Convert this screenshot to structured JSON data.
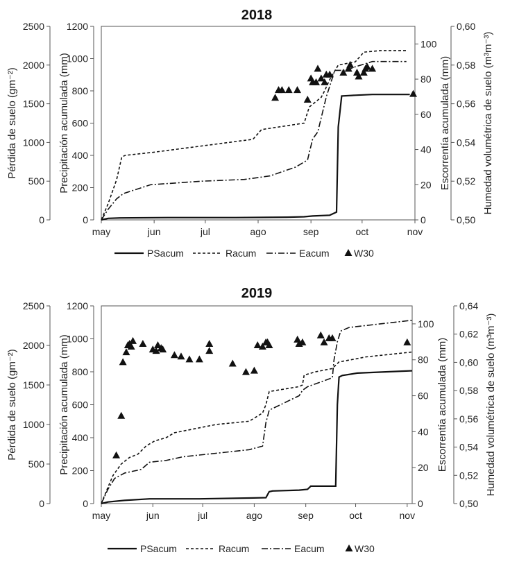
{
  "chart_data": [
    {
      "type": "line",
      "title": "2018",
      "axes": {
        "soil_loss": {
          "label": "Pérdida de suelo (gm⁻²)",
          "range": [
            0,
            2500
          ],
          "ticks": [
            "0",
            "500",
            "1000",
            "1500",
            "2000",
            "2500"
          ]
        },
        "precip": {
          "label": "Precipitación acumulada  (mm)",
          "range": [
            0,
            1200
          ],
          "ticks": [
            "0",
            "200",
            "400",
            "600",
            "800",
            "1000",
            "1200"
          ]
        },
        "runoff": {
          "label": "Escorrentía acumulada (mm)",
          "range": [
            0,
            110
          ],
          "ticks": [
            "0",
            "20",
            "40",
            "60",
            "80",
            "100"
          ]
        },
        "moisture": {
          "label": "Humedad volumétrica de suelo (m³m⁻³)",
          "range": [
            0.5,
            0.6
          ],
          "ticks": [
            "0,50",
            "0,52",
            "0,54",
            "0,56",
            "0,58",
            "0,60"
          ]
        }
      },
      "x_ticks": [
        {
          "label": "may",
          "day": 1
        },
        {
          "label": "jun",
          "day": 32
        },
        {
          "label": "jul",
          "day": 62
        },
        {
          "label": "ago",
          "day": 93
        },
        {
          "label": "sep",
          "day": 124
        },
        {
          "label": "oct",
          "day": 154
        },
        {
          "label": "nov",
          "day": 185
        }
      ],
      "x_range": [
        1,
        185
      ],
      "series": [
        {
          "name": "PSacum",
          "axis": "soil_loss",
          "style": "solid",
          "x": [
            1,
            5,
            12,
            40,
            80,
            110,
            120,
            125,
            135,
            139,
            140,
            142,
            150,
            160,
            170,
            182
          ],
          "y": [
            0,
            20,
            25,
            30,
            30,
            35,
            40,
            50,
            60,
            100,
            1200,
            1600,
            1610,
            1620,
            1620,
            1620
          ]
        },
        {
          "name": "Racum",
          "axis": "precip",
          "style": "dashed",
          "x": [
            1,
            5,
            10,
            13,
            15,
            32,
            90,
            95,
            120,
            123,
            130,
            132,
            135,
            140,
            150,
            155,
            165,
            180
          ],
          "y": [
            0,
            100,
            250,
            390,
            400,
            420,
            500,
            560,
            600,
            700,
            760,
            800,
            870,
            960,
            980,
            1040,
            1050,
            1050
          ]
        },
        {
          "name": "Eacum",
          "axis": "runoff",
          "style": "dashdot",
          "x": [
            1,
            5,
            10,
            14,
            30,
            60,
            85,
            100,
            115,
            122,
            125,
            128,
            133,
            138,
            145,
            150,
            160,
            180
          ],
          "y": [
            0,
            6,
            12,
            15,
            20,
            22,
            23,
            25,
            30,
            34,
            46,
            50,
            70,
            85,
            85,
            87,
            90,
            90
          ]
        },
        {
          "name": "W30",
          "axis": "moisture",
          "style": "triangle",
          "x": [
            103,
            105,
            107,
            111,
            116,
            122,
            124,
            125,
            127,
            128,
            130,
            132,
            133,
            135,
            143,
            146,
            147,
            151,
            152,
            155,
            156,
            157,
            160,
            184
          ],
          "y": [
            0.563,
            0.567,
            0.567,
            0.567,
            0.567,
            0.562,
            0.573,
            0.571,
            0.571,
            0.578,
            0.573,
            0.571,
            0.575,
            0.575,
            0.576,
            0.578,
            0.58,
            0.576,
            0.574,
            0.576,
            0.578,
            0.579,
            0.578,
            0.565
          ]
        }
      ],
      "legend": {
        "placement": "bottom",
        "entries": [
          "PSacum",
          "Racum",
          "Eacum",
          "W30"
        ]
      }
    },
    {
      "type": "line",
      "title": "2019",
      "axes": {
        "soil_loss": {
          "label": "Pérdida de suelo (gm⁻²)",
          "range": [
            0,
            2500
          ],
          "ticks": [
            "0",
            "500",
            "1000",
            "1500",
            "2000",
            "2500"
          ]
        },
        "precip": {
          "label": "Precipitación acumulada  (mm)",
          "range": [
            0,
            1200
          ],
          "ticks": [
            "0",
            "200",
            "400",
            "600",
            "800",
            "1000",
            "1200"
          ]
        },
        "runoff": {
          "label": "Escorrentía acumulada (mm)",
          "range": [
            0,
            110
          ],
          "ticks": [
            "0",
            "20",
            "40",
            "60",
            "80",
            "100"
          ]
        },
        "moisture": {
          "label": "Humedad volumétrica de suelo (m³m⁻³)",
          "range": [
            0.5,
            0.64
          ],
          "ticks": [
            "0,50",
            "0,52",
            "0,54",
            "0,56",
            "0,58",
            "0,60",
            "0,62",
            "0,64"
          ]
        }
      },
      "x_ticks": [
        {
          "label": "may",
          "day": 1
        },
        {
          "label": "jun",
          "day": 32
        },
        {
          "label": "jul",
          "day": 62
        },
        {
          "label": "ago",
          "day": 93
        },
        {
          "label": "sep",
          "day": 124
        },
        {
          "label": "oct",
          "day": 154
        },
        {
          "label": "nov",
          "day": 185
        }
      ],
      "x_range": [
        1,
        188
      ],
      "series": [
        {
          "name": "PSacum",
          "axis": "soil_loss",
          "style": "solid",
          "x": [
            1,
            5,
            15,
            30,
            60,
            90,
            100,
            102,
            104,
            120,
            125,
            127,
            142,
            143,
            144,
            146,
            155,
            188
          ],
          "y": [
            0,
            20,
            40,
            60,
            60,
            70,
            75,
            150,
            160,
            170,
            180,
            220,
            220,
            1250,
            1600,
            1620,
            1650,
            1680
          ]
        },
        {
          "name": "Racum",
          "axis": "precip",
          "style": "dashed",
          "x": [
            1,
            5,
            8,
            13,
            18,
            23,
            28,
            33,
            40,
            45,
            60,
            70,
            90,
            98,
            100,
            102,
            120,
            122,
            123,
            130,
            140,
            142,
            144,
            155,
            160,
            188
          ],
          "y": [
            0,
            100,
            170,
            240,
            280,
            300,
            350,
            380,
            400,
            430,
            460,
            480,
            500,
            550,
            600,
            680,
            710,
            720,
            780,
            800,
            820,
            840,
            860,
            880,
            890,
            920
          ]
        },
        {
          "name": "Eacum",
          "axis": "runoff",
          "style": "dashdot",
          "x": [
            1,
            5,
            9,
            15,
            20,
            25,
            30,
            40,
            50,
            60,
            70,
            80,
            90,
            98,
            100,
            102,
            120,
            122,
            125,
            140,
            141,
            143,
            145,
            150,
            188
          ],
          "y": [
            0,
            8,
            14,
            17,
            18,
            19,
            23,
            24,
            26,
            27,
            28,
            29,
            30,
            32,
            45,
            52,
            60,
            63,
            65,
            70,
            80,
            90,
            96,
            98,
            102
          ]
        },
        {
          "name": "W30",
          "axis": "moisture",
          "style": "triangle",
          "x": [
            10,
            13,
            14,
            16,
            17,
            18,
            19,
            20,
            26,
            32,
            34,
            35,
            37,
            38,
            45,
            49,
            54,
            60,
            66,
            66,
            80,
            88,
            93,
            95,
            98,
            100,
            101,
            102,
            119,
            120,
            122,
            133,
            135,
            138,
            140,
            185
          ],
          "y": [
            0.534,
            0.562,
            0.6,
            0.607,
            0.612,
            0.613,
            0.611,
            0.615,
            0.613,
            0.609,
            0.608,
            0.612,
            0.61,
            0.609,
            0.605,
            0.604,
            0.602,
            0.602,
            0.613,
            0.608,
            0.599,
            0.593,
            0.594,
            0.612,
            0.611,
            0.614,
            0.614,
            0.612,
            0.616,
            0.613,
            0.614,
            0.619,
            0.614,
            0.617,
            0.617,
            0.614
          ]
        }
      ],
      "legend": {
        "placement": "bottom",
        "entries": [
          "PSacum",
          "Racum",
          "Eacum",
          "W30"
        ]
      }
    }
  ]
}
